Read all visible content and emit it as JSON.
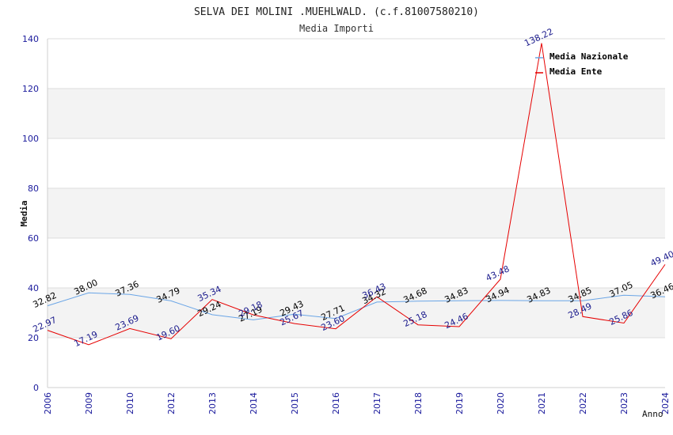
{
  "chart_data": {
    "type": "line",
    "title": "SELVA DEI MOLINI .MUEHLWALD. (c.f.81007580210)",
    "subtitle": "Media Importi",
    "xlabel": "Anno",
    "ylabel": "Media",
    "ylim": [
      0,
      140
    ],
    "yticks": [
      "0",
      "20",
      "40",
      "60",
      "80",
      "100",
      "120",
      "140"
    ],
    "categories": [
      "2006",
      "2009",
      "2010",
      "2012",
      "2013",
      "2014",
      "2015",
      "2016",
      "2017",
      "2018",
      "2019",
      "2020",
      "2021",
      "2022",
      "2023",
      "2024"
    ],
    "series": [
      {
        "name": "Media Nazionale",
        "color": "#6aa5e6",
        "label_color": "#000000",
        "values": [
          32.82,
          38.0,
          37.36,
          34.79,
          29.24,
          27.19,
          29.43,
          27.71,
          34.32,
          34.68,
          34.83,
          34.94,
          34.83,
          34.85,
          37.05,
          36.46
        ],
        "labels": [
          "32.82",
          "38.00",
          "37.36",
          "34.79",
          "29.24",
          "27.19",
          "29.43",
          "27.71",
          "34.32",
          "34.68",
          "34.83",
          "34.94",
          "34.83",
          "34.85",
          "37.05",
          "36.46"
        ]
      },
      {
        "name": "Media Ente",
        "color": "#e60000",
        "label_color": "#1a1a8c",
        "values": [
          22.97,
          17.19,
          23.69,
          19.6,
          35.34,
          29.18,
          25.67,
          23.6,
          36.43,
          25.18,
          24.46,
          43.48,
          138.22,
          28.49,
          25.86,
          49.4
        ],
        "labels": [
          "22.97",
          "17.19",
          "23.69",
          "19.60",
          "35.34",
          "29.18",
          "25.67",
          "23.60",
          "36.43",
          "25.18",
          "24.46",
          "43.48",
          "138.22",
          "28.49",
          "25.86",
          "49.40"
        ]
      }
    ],
    "grid": true,
    "legend_position": "top-right"
  }
}
